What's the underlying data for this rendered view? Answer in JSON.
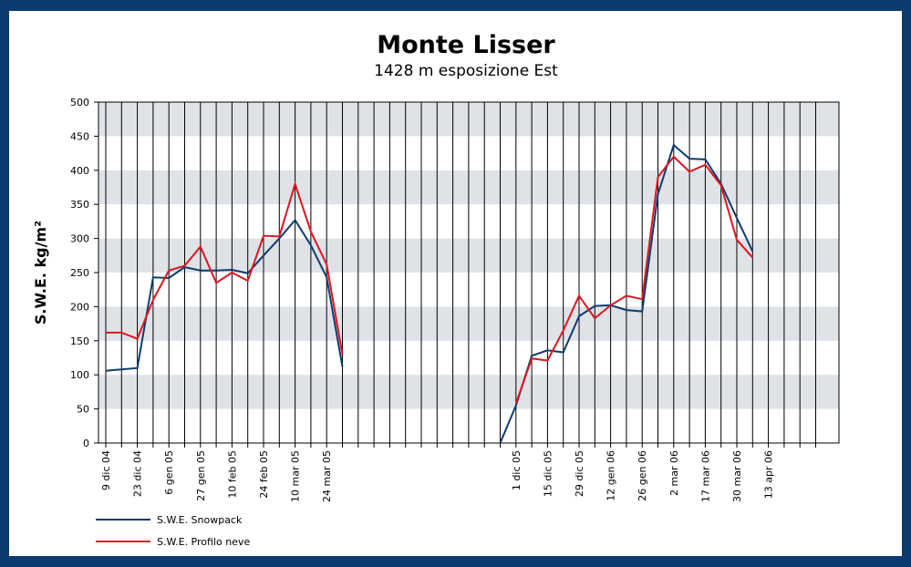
{
  "chart_data": {
    "type": "line",
    "title": "Monte Lisser",
    "subtitle": "1428 m esposizione Est",
    "y_label": "S.W.E. kg/m²",
    "categories": [
      "9 dic 04",
      null,
      "23 dic 04",
      null,
      "6 gen 05",
      null,
      "27 gen 05",
      null,
      "10 feb 05",
      null,
      "24 feb 05",
      null,
      "10 mar 05",
      null,
      "24 mar 05",
      null,
      null,
      null,
      null,
      null,
      null,
      null,
      null,
      null,
      null,
      null,
      "1 dic 05",
      null,
      "15 dic 05",
      null,
      "29 dic 05",
      null,
      "12 gen 06",
      null,
      "26 gen 06",
      null,
      "2 mar 06",
      null,
      "17 mar 06",
      null,
      "30 mar 06",
      null,
      "13 apr 06",
      null,
      null,
      null
    ],
    "series": [
      {
        "name": "S.W.E. Snowpack",
        "color": "#0d3b6e",
        "values": [
          106,
          108,
          110,
          243,
          242,
          258,
          253,
          253,
          254,
          249,
          275,
          300,
          327,
          290,
          243,
          112,
          null,
          null,
          null,
          null,
          null,
          null,
          null,
          null,
          null,
          0,
          55,
          128,
          136,
          133,
          186,
          201,
          202,
          195,
          193,
          365,
          437,
          417,
          416,
          380,
          330,
          281,
          null,
          null,
          null,
          null
        ]
      },
      {
        "name": "S.W.E. Profilo neve",
        "color": "#e0141e",
        "values": [
          162,
          162,
          153,
          210,
          253,
          260,
          288,
          235,
          250,
          238,
          304,
          303,
          380,
          310,
          262,
          130,
          null,
          null,
          null,
          null,
          null,
          null,
          null,
          null,
          null,
          null,
          58,
          124,
          121,
          165,
          216,
          183,
          202,
          216,
          211,
          390,
          420,
          398,
          408,
          378,
          298,
          272,
          null,
          null,
          null,
          null
        ]
      }
    ],
    "ylim": [
      0,
      500
    ],
    "yticks": [
      0,
      50,
      100,
      150,
      200,
      250,
      300,
      350,
      400,
      450,
      500
    ],
    "grid": true,
    "legend": "bottom-left"
  }
}
